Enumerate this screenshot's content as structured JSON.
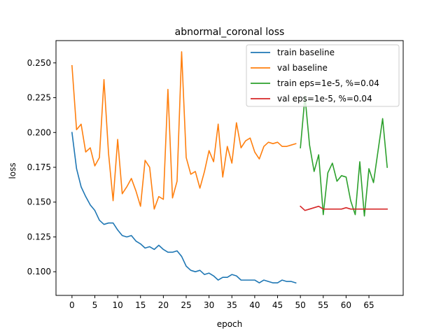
{
  "chart_data": {
    "type": "line",
    "title": "abnormal_coronal loss",
    "xlabel": "epoch",
    "ylabel": "loss",
    "xlim": [
      -3.5,
      72.5
    ],
    "ylim": [
      0.083,
      0.266
    ],
    "x_ticks": [
      0,
      5,
      10,
      15,
      20,
      25,
      30,
      35,
      40,
      45,
      50,
      55,
      60,
      65
    ],
    "y_ticks": [
      0.1,
      0.125,
      0.15,
      0.175,
      0.2,
      0.225,
      0.25
    ],
    "y_tick_labels": [
      "0.100",
      "0.125",
      "0.150",
      "0.175",
      "0.200",
      "0.225",
      "0.250"
    ],
    "grid": false,
    "legend_position": "top-right",
    "series": [
      {
        "name": "train baseline",
        "color": "#1f77b4",
        "x": [
          0,
          1,
          2,
          3,
          4,
          5,
          6,
          7,
          8,
          9,
          10,
          11,
          12,
          13,
          14,
          15,
          16,
          17,
          18,
          19,
          20,
          21,
          22,
          23,
          24,
          25,
          26,
          27,
          28,
          29,
          30,
          31,
          32,
          33,
          34,
          35,
          36,
          37,
          38,
          39,
          40,
          41,
          42,
          43,
          44,
          45,
          46,
          47,
          48,
          49
        ],
        "y": [
          0.2,
          0.174,
          0.161,
          0.154,
          0.148,
          0.144,
          0.137,
          0.134,
          0.135,
          0.135,
          0.13,
          0.126,
          0.125,
          0.126,
          0.122,
          0.12,
          0.117,
          0.118,
          0.116,
          0.119,
          0.116,
          0.114,
          0.114,
          0.115,
          0.111,
          0.104,
          0.101,
          0.1,
          0.101,
          0.098,
          0.099,
          0.097,
          0.094,
          0.096,
          0.096,
          0.098,
          0.097,
          0.094,
          0.094,
          0.094,
          0.094,
          0.092,
          0.094,
          0.093,
          0.092,
          0.092,
          0.094,
          0.093,
          0.093,
          0.092
        ]
      },
      {
        "name": "val baseline",
        "color": "#ff7f0e",
        "x": [
          0,
          1,
          2,
          3,
          4,
          5,
          6,
          7,
          8,
          9,
          10,
          11,
          12,
          13,
          14,
          15,
          16,
          17,
          18,
          19,
          20,
          21,
          22,
          23,
          24,
          25,
          26,
          27,
          28,
          29,
          30,
          31,
          32,
          33,
          34,
          35,
          36,
          37,
          38,
          39,
          40,
          41,
          42,
          43,
          44,
          45,
          46,
          47,
          48,
          49
        ],
        "y": [
          0.248,
          0.202,
          0.206,
          0.186,
          0.189,
          0.176,
          0.182,
          0.238,
          0.185,
          0.151,
          0.195,
          0.156,
          0.161,
          0.167,
          0.158,
          0.147,
          0.18,
          0.175,
          0.145,
          0.154,
          0.152,
          0.231,
          0.153,
          0.165,
          0.258,
          0.182,
          0.17,
          0.172,
          0.16,
          0.172,
          0.187,
          0.179,
          0.206,
          0.168,
          0.19,
          0.178,
          0.207,
          0.189,
          0.194,
          0.196,
          0.186,
          0.181,
          0.19,
          0.193,
          0.192,
          0.193,
          0.19,
          0.19,
          0.191,
          0.192
        ]
      },
      {
        "name": "train eps=1e-5, %=0.04",
        "color": "#2ca02c",
        "x": [
          50,
          51,
          52,
          53,
          54,
          55,
          56,
          57,
          58,
          59,
          60,
          61,
          62,
          63,
          64,
          65,
          66,
          67,
          68,
          69
        ],
        "y": [
          0.189,
          0.226,
          0.191,
          0.172,
          0.184,
          0.141,
          0.171,
          0.178,
          0.165,
          0.169,
          0.168,
          0.151,
          0.141,
          0.179,
          0.14,
          0.174,
          0.164,
          0.187,
          0.21,
          0.175
        ]
      },
      {
        "name": "val eps=1e-5, %=0.04",
        "color": "#d62728",
        "x": [
          50,
          51,
          52,
          53,
          54,
          55,
          56,
          57,
          58,
          59,
          60,
          61,
          62,
          63,
          64,
          65,
          66,
          67,
          68,
          69
        ],
        "y": [
          0.147,
          0.144,
          0.145,
          0.146,
          0.147,
          0.145,
          0.145,
          0.145,
          0.145,
          0.145,
          0.146,
          0.145,
          0.145,
          0.145,
          0.145,
          0.145,
          0.145,
          0.145,
          0.145,
          0.145
        ]
      }
    ]
  }
}
